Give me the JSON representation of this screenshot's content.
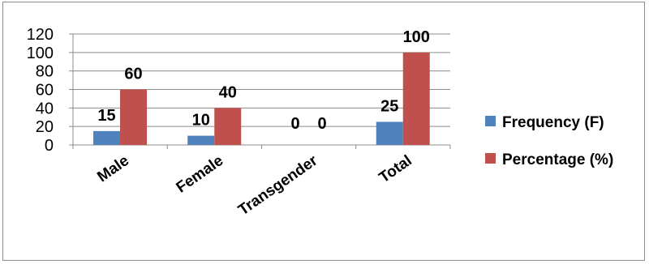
{
  "chart_data": {
    "type": "bar",
    "categories": [
      "Male",
      "Female",
      "Transgender",
      "Total"
    ],
    "series": [
      {
        "name": "Frequency (F)",
        "values": [
          15,
          10,
          0,
          25
        ],
        "color": "#4f81bd"
      },
      {
        "name": "Percentage (%)",
        "values": [
          60,
          40,
          0,
          100
        ],
        "color": "#c0504d"
      }
    ],
    "y_ticks": [
      0,
      20,
      40,
      60,
      80,
      100,
      120
    ],
    "ylim": [
      0,
      120
    ],
    "grid": true,
    "data_labels": true,
    "legend_position": "right",
    "title": "",
    "xlabel": "",
    "ylabel": ""
  }
}
